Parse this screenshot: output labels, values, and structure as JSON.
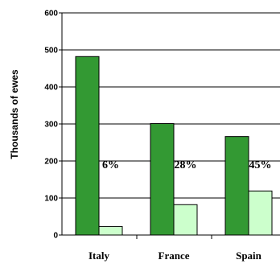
{
  "chart_data": {
    "type": "bar",
    "title": "",
    "xlabel": "",
    "ylabel": "Thousands of ewes",
    "ylim": [
      0,
      600
    ],
    "yticks": [
      0,
      100,
      200,
      300,
      400,
      500,
      600
    ],
    "grid": true,
    "categories": [
      "Italy",
      "France",
      "Spain"
    ],
    "series": [
      {
        "values": [
          482,
          301,
          266
        ],
        "color": "#339933"
      },
      {
        "values": [
          23,
          82,
          119
        ],
        "color": "#ccffcc"
      }
    ],
    "annotations": [
      "6%",
      "28%",
      "45%"
    ]
  }
}
